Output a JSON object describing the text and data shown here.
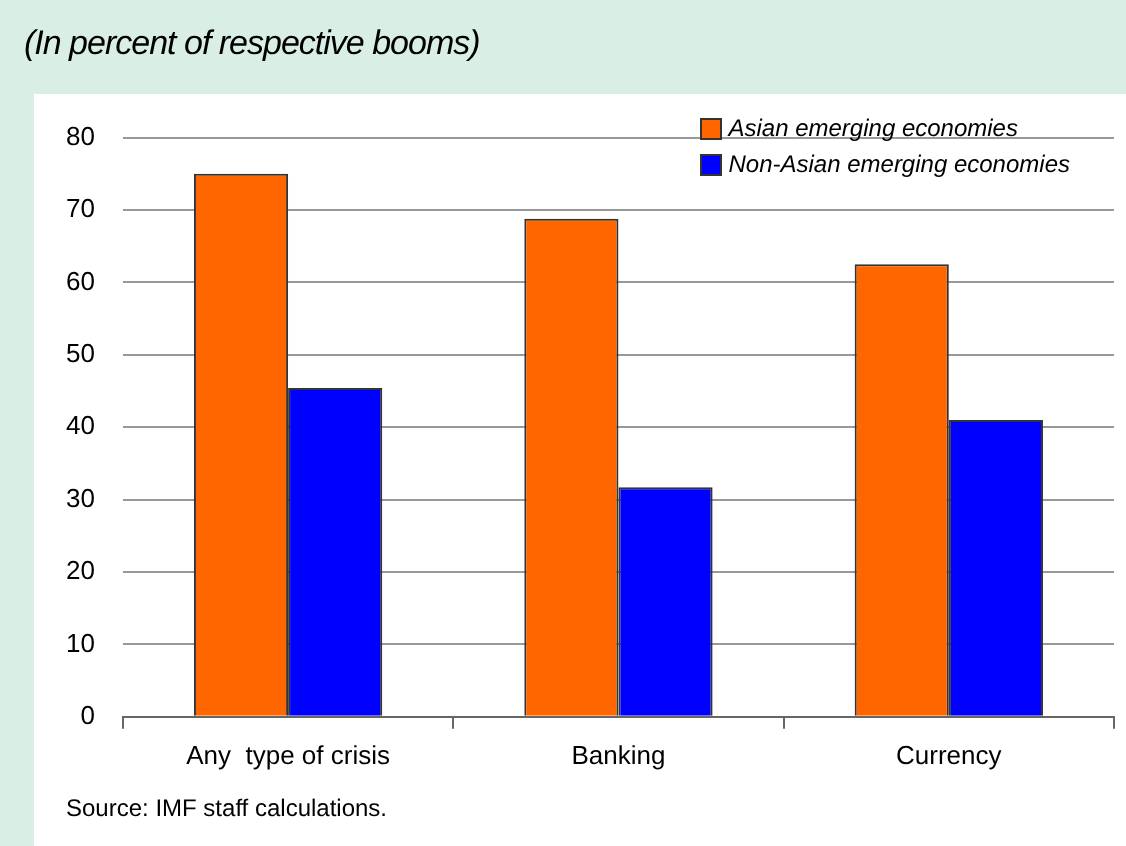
{
  "chart_data": {
    "type": "bar",
    "title": "(In percent of respective booms)",
    "categories": [
      "Any  type of crisis",
      "Banking",
      "Currency"
    ],
    "series": [
      {
        "name": "Asian emerging economies",
        "color": "#ff6600",
        "values": [
          75,
          68.8,
          62.5
        ]
      },
      {
        "name": "Non-Asian emerging economies",
        "color": "#0000ff",
        "values": [
          45.4,
          31.7,
          41
        ]
      }
    ],
    "ylim": [
      0,
      80
    ],
    "yticks": [
      0,
      10,
      20,
      30,
      40,
      50,
      60,
      70,
      80
    ],
    "grid": "y",
    "legend": "top right",
    "annotations": [
      "Source: IMF staff calculations."
    ]
  }
}
